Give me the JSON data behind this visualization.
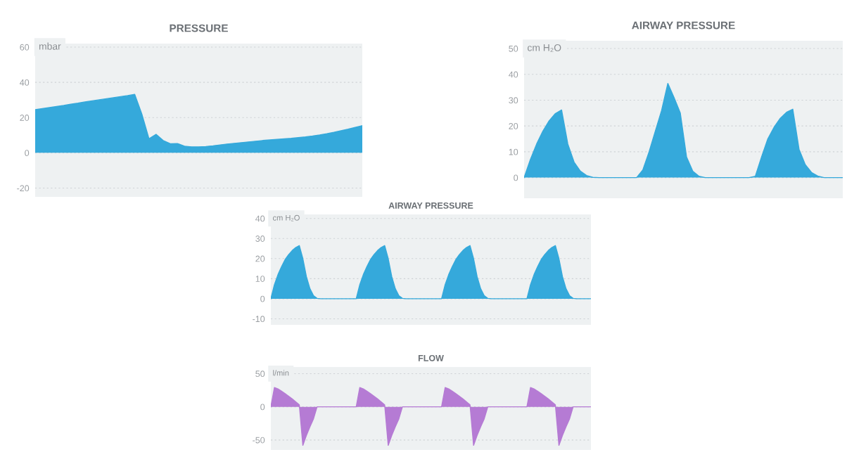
{
  "chart_data": [
    {
      "type": "area",
      "title": "PRESSURE",
      "ylabel": "mbar",
      "color": "#35a9db",
      "ylim": [
        -25,
        62
      ],
      "yticks": [
        -20,
        0,
        20,
        40,
        60
      ],
      "grid": "y",
      "categories": [
        null,
        null,
        null,
        null,
        null,
        null,
        null,
        null,
        null,
        null,
        null,
        null,
        null,
        null,
        null,
        null,
        null,
        null,
        null,
        null,
        null,
        null,
        null,
        null,
        null,
        null,
        null,
        null,
        null,
        null,
        null,
        null,
        null,
        null,
        null,
        null,
        null,
        null,
        null,
        null,
        null,
        null,
        null,
        null,
        null,
        null,
        null
      ],
      "values": [
        24.5,
        25.1,
        25.7,
        26.3,
        26.9,
        27.6,
        28.2,
        28.9,
        29.5,
        30.1,
        30.7,
        31.3,
        31.9,
        32.5,
        33.2,
        22,
        8,
        10.5,
        7,
        5.2,
        5.3,
        3.8,
        3.4,
        3.4,
        3.6,
        4.0,
        4.5,
        5.0,
        5.4,
        5.8,
        6.2,
        6.6,
        7.0,
        7.3,
        7.6,
        7.9,
        8.2,
        8.6,
        9.0,
        9.5,
        10.1,
        10.8,
        11.6,
        12.5,
        13.4,
        14.4,
        15.4
      ]
    },
    {
      "type": "area",
      "title": "AIRWAY PRESSURE",
      "ylabel": "cm H₂O",
      "color": "#35a9db",
      "ylim": [
        -8,
        53
      ],
      "yticks": [
        0,
        10,
        20,
        30,
        40,
        50
      ],
      "grid": "y",
      "categories": [
        null,
        null,
        null,
        null,
        null,
        null,
        null,
        null,
        null,
        null,
        null,
        null,
        null,
        null,
        null,
        null,
        null,
        null,
        null,
        null,
        null,
        null,
        null,
        null,
        null,
        null,
        null,
        null,
        null,
        null,
        null,
        null,
        null,
        null,
        null,
        null,
        null,
        null,
        null,
        null,
        null,
        null,
        null,
        null,
        null,
        null,
        null,
        null,
        null,
        null,
        null,
        null
      ],
      "values": [
        0,
        7,
        13,
        18,
        22,
        24.8,
        26.2,
        13,
        6,
        2.5,
        0.8,
        0.1,
        0,
        0,
        0,
        0,
        0,
        0,
        0,
        3,
        10,
        18,
        26,
        36.5,
        31,
        25,
        8,
        2.5,
        0.5,
        0,
        0,
        0,
        0,
        0,
        0,
        0,
        0,
        0.5,
        8,
        15,
        19.5,
        23,
        25.3,
        26.5,
        11,
        5,
        2,
        0.6,
        0,
        0,
        0,
        0
      ]
    },
    {
      "type": "area",
      "title": "AIRWAY PRESSURE",
      "ylabel": "cm H₂O",
      "color": "#35a9db",
      "ylim": [
        -13,
        42
      ],
      "yticks": [
        -10,
        0,
        10,
        20,
        30,
        40
      ],
      "grid": "y",
      "categories": [
        null,
        null,
        null,
        null,
        null,
        null,
        null,
        null,
        null,
        null,
        null,
        null,
        null,
        null,
        null,
        null,
        null,
        null,
        null,
        null,
        null,
        null,
        null,
        null,
        null,
        null,
        null,
        null,
        null,
        null,
        null,
        null,
        null,
        null,
        null,
        null,
        null,
        null,
        null,
        null,
        null,
        null,
        null,
        null,
        null,
        null,
        null,
        null,
        null,
        null,
        null,
        null,
        null,
        null,
        null,
        null,
        null,
        null,
        null,
        null,
        null,
        null,
        null,
        null,
        null,
        null,
        null,
        null,
        null,
        null,
        null,
        null,
        null,
        null,
        null,
        null,
        null,
        null,
        null,
        null,
        null,
        null,
        null,
        null,
        null,
        null,
        null,
        null,
        null,
        null,
        null
      ],
      "values": [
        0,
        7,
        12,
        16,
        19.5,
        22,
        24,
        25.5,
        26.5,
        20,
        11,
        5,
        1.5,
        0.2,
        0,
        0,
        0,
        0,
        0,
        0,
        0,
        0,
        0,
        0,
        0,
        7,
        12,
        16,
        19.5,
        22,
        24,
        25.5,
        26.5,
        20,
        11,
        5,
        1.5,
        0.2,
        0,
        0,
        0,
        0,
        0,
        0,
        0,
        0,
        0,
        0,
        0,
        7,
        12,
        16,
        19.5,
        22,
        24,
        25.5,
        26.5,
        20,
        11,
        5,
        1.5,
        0.2,
        0,
        0,
        0,
        0,
        0,
        0,
        0,
        0,
        0,
        0,
        0,
        7,
        12,
        16,
        19.5,
        22,
        24,
        25.5,
        26.5,
        20,
        11,
        5,
        1.5,
        0.2,
        0,
        0,
        0,
        0,
        0
      ]
    },
    {
      "type": "area",
      "title": "FLOW",
      "ylabel": "l/min",
      "color": "#b57bd4",
      "ylim": [
        -65,
        60
      ],
      "yticks": [
        -50,
        0,
        50
      ],
      "grid": "y",
      "categories": [
        null,
        null,
        null,
        null,
        null,
        null,
        null,
        null,
        null,
        null,
        null,
        null,
        null,
        null,
        null,
        null,
        null,
        null,
        null,
        null,
        null,
        null,
        null,
        null,
        null,
        null,
        null,
        null,
        null,
        null,
        null,
        null,
        null,
        null,
        null,
        null,
        null,
        null,
        null,
        null,
        null,
        null,
        null,
        null,
        null,
        null,
        null,
        null,
        null,
        null,
        null,
        null,
        null,
        null,
        null,
        null,
        null,
        null,
        null,
        null,
        null,
        null,
        null,
        null,
        null,
        null,
        null,
        null,
        null,
        null,
        null,
        null,
        null,
        null,
        null,
        null,
        null,
        null,
        null,
        null,
        null,
        null,
        null,
        null,
        null,
        null,
        null,
        null,
        null,
        null,
        null
      ],
      "values": [
        0,
        29,
        27,
        23.5,
        20,
        16,
        12,
        7.5,
        3,
        -58,
        -43,
        -30,
        -18,
        0,
        0,
        0,
        0,
        0,
        0,
        0,
        0,
        0,
        0,
        0,
        0,
        29,
        27,
        23.5,
        20,
        16,
        12,
        7.5,
        3,
        -58,
        -43,
        -30,
        -18,
        0,
        0,
        0,
        0,
        0,
        0,
        0,
        0,
        0,
        0,
        0,
        0,
        29,
        27,
        23.5,
        20,
        16,
        12,
        7.5,
        3,
        -58,
        -43,
        -30,
        -18,
        0,
        0,
        0,
        0,
        0,
        0,
        0,
        0,
        0,
        0,
        0,
        0,
        29,
        27,
        23.5,
        20,
        16,
        12,
        7.5,
        3,
        -58,
        -43,
        -30,
        -18,
        0,
        0,
        0,
        0,
        0,
        0
      ]
    }
  ]
}
